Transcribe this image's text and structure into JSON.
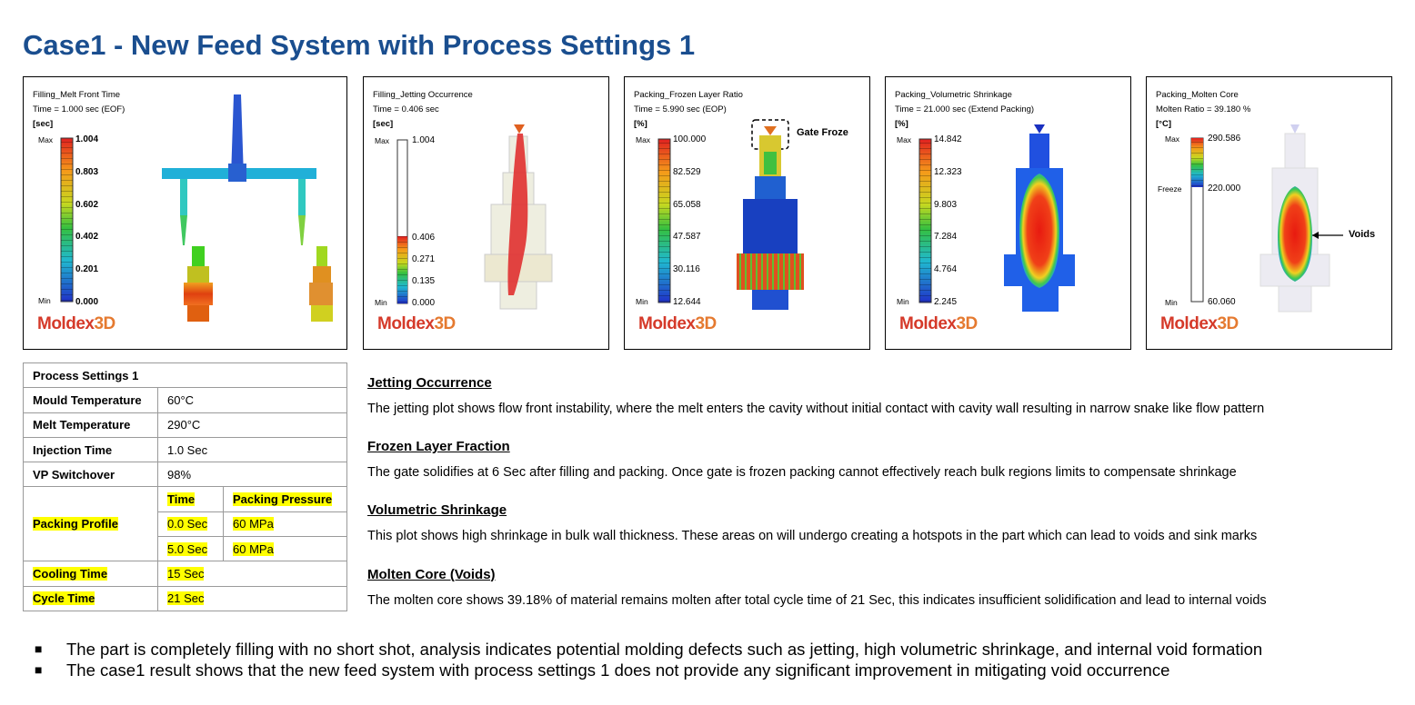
{
  "title": "Case1 - New Feed System with Process Settings 1",
  "panels": [
    {
      "h1": "Filling_Melt Front Time",
      "h2": "Time = 1.000 sec (EOF)",
      "h3": "[sec]",
      "ticks": [
        "1.004",
        "0.803",
        "0.602",
        "0.402",
        "0.201",
        "0.000"
      ],
      "max": "Max",
      "min": "Min"
    },
    {
      "h1": "Filling_Jetting Occurrence",
      "h2": "Time = 0.406 sec",
      "h3": "[sec]",
      "ticks": [
        "1.004",
        "0.406",
        "0.271",
        "0.135",
        "0.000"
      ],
      "max": "Max",
      "min": "Min"
    },
    {
      "h1": "Packing_Frozen Layer Ratio",
      "h2": "Time = 5.990 sec (EOP)",
      "h3": "[%]",
      "ticks": [
        "100.000",
        "82.529",
        "65.058",
        "47.587",
        "30.116",
        "12.644"
      ],
      "max": "Max",
      "min": "Min",
      "callout": "Gate Froze"
    },
    {
      "h1": "Packing_Volumetric Shrinkage",
      "h2": "Time = 21.000 sec (Extend Packing)",
      "h3": "[%]",
      "ticks": [
        "14.842",
        "12.323",
        "9.803",
        "7.284",
        "4.764",
        "2.245"
      ],
      "max": "Max",
      "min": "Min"
    },
    {
      "h1": "Packing_Molten Core",
      "h2": "Molten Ratio = 39.180 %",
      "h3": "[°C]",
      "ticks": [
        "290.586",
        "220.000",
        "60.060"
      ],
      "max": "Max",
      "min": "Min",
      "freeze": "Freeze",
      "callout": "Voids"
    }
  ],
  "logo": {
    "part1": "Moldex",
    "part2": "3D"
  },
  "table": {
    "header": "Process Settings 1",
    "rows": [
      {
        "label": "Mould Temperature",
        "value": "60°C"
      },
      {
        "label": "Melt Temperature",
        "value": "290°C"
      },
      {
        "label": "Injection Time",
        "value": "1.0 Sec"
      },
      {
        "label": "VP Switchover",
        "value": "98%"
      }
    ],
    "packing_label": "Packing Profile",
    "packing_cols": [
      "Time",
      "Packing Pressure"
    ],
    "packing_rows": [
      [
        "0.0 Sec",
        "60 MPa"
      ],
      [
        "5.0 Sec",
        "60 MPa"
      ]
    ],
    "cooling": {
      "label": "Cooling Time",
      "value": "15 Sec"
    },
    "cycle": {
      "label": "Cycle Time",
      "value": "21 Sec"
    }
  },
  "sections": [
    {
      "heading": "Jetting Occurrence",
      "text": "The jetting plot shows flow front instability, where the melt enters the cavity without initial contact with cavity wall resulting in narrow snake like flow pattern"
    },
    {
      "heading": "Frozen Layer Fraction",
      "text": "The gate solidifies at 6 Sec after filling and packing. Once gate is frozen packing cannot effectively reach bulk regions limits to compensate shrinkage"
    },
    {
      "heading": "Volumetric Shrinkage",
      "text": "This plot shows high shrinkage in bulk wall thickness. These areas on will undergo creating a hotspots in the part which can lead to voids and sink marks"
    },
    {
      "heading": "Molten Core (Voids)",
      "text": "The molten core shows 39.18% of material remains molten after total cycle time of 21 Sec, this indicates insufficient solidification and lead to internal voids"
    }
  ],
  "bullets": [
    "The part is completely filling with no short shot, analysis indicates potential molding defects such as jetting, high volumetric shrinkage, and internal void formation",
    "The case1 result shows that the new feed system with process settings 1 does not provide any significant improvement in mitigating void occurrence"
  ],
  "colors": {
    "title": "#1a4e8f",
    "highlight": "#ffff00",
    "logo_red": "#d53a2a",
    "logo_orange": "#e57a30"
  }
}
